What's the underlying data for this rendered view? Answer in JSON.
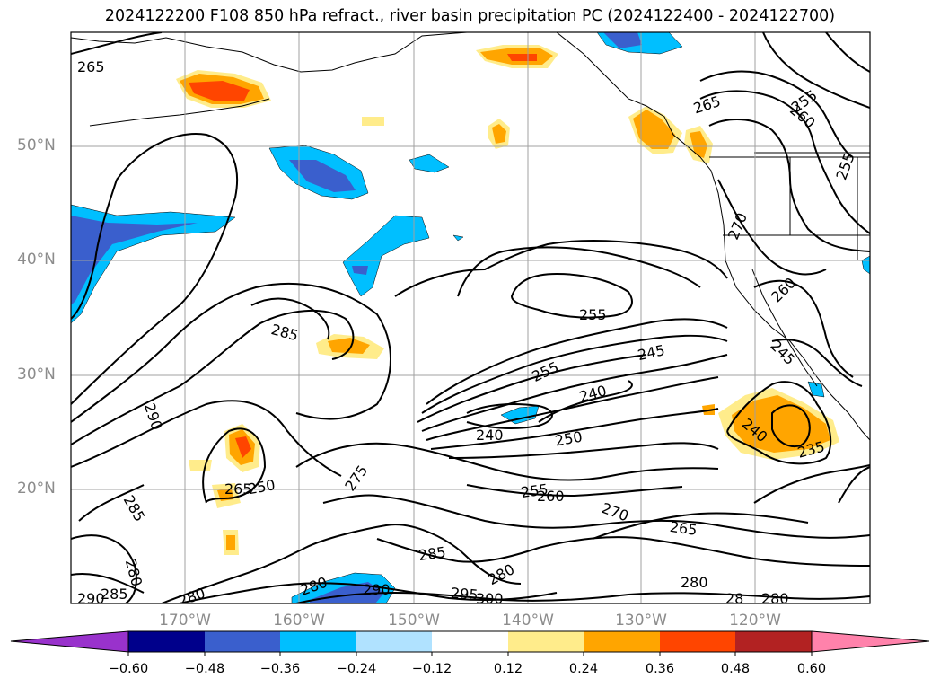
{
  "title": "2024122200 F108 850 hPa refract., river basin precipitation PC (2024122400 - 2024122700)",
  "lat_labels": [
    "50°N",
    "40°N",
    "30°N",
    "20°N"
  ],
  "lon_labels": [
    "170°W",
    "160°W",
    "150°W",
    "140°W",
    "130°W",
    "120°W"
  ],
  "colorbar": {
    "ticks": [
      "−0.60",
      "−0.48",
      "−0.36",
      "−0.24",
      "−0.12",
      "0.12",
      "0.24",
      "0.36",
      "0.48",
      "0.60"
    ],
    "colors": [
      "#9932cc",
      "#00008b",
      "#3a5fcd",
      "#00bfff",
      "#b0e2ff",
      "#ffffff",
      "#ffec8b",
      "#ffa500",
      "#ff4500",
      "#b22222",
      "#ff82ab"
    ]
  },
  "contour_labels": [
    {
      "text": "265"
    },
    {
      "text": "265"
    },
    {
      "text": "255"
    },
    {
      "text": "260"
    },
    {
      "text": "255"
    },
    {
      "text": "270"
    },
    {
      "text": "260"
    },
    {
      "text": "285"
    },
    {
      "text": "255"
    },
    {
      "text": "245"
    },
    {
      "text": "255"
    },
    {
      "text": "245"
    },
    {
      "text": "240"
    },
    {
      "text": "290"
    },
    {
      "text": "240"
    },
    {
      "text": "250"
    },
    {
      "text": "240"
    },
    {
      "text": "235"
    },
    {
      "text": "275"
    },
    {
      "text": "265"
    },
    {
      "text": "250"
    },
    {
      "text": "255"
    },
    {
      "text": "260"
    },
    {
      "text": "285"
    },
    {
      "text": "270"
    },
    {
      "text": "265"
    },
    {
      "text": "285"
    },
    {
      "text": "280"
    },
    {
      "text": "280"
    },
    {
      "text": "280"
    },
    {
      "text": "280"
    },
    {
      "text": "290"
    },
    {
      "text": "295"
    },
    {
      "text": "300"
    },
    {
      "text": "285"
    },
    {
      "text": "290"
    },
    {
      "text": "280"
    },
    {
      "text": "28"
    },
    {
      "text": "280"
    }
  ]
}
